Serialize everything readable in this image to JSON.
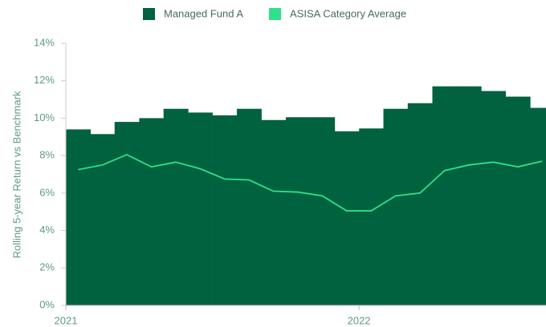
{
  "chart_data": {
    "type": "step-area-line",
    "y_label": "Rolling 5-year Return vs Benchmark",
    "x": [
      2021.042,
      2021.125,
      2021.208,
      2021.292,
      2021.375,
      2021.458,
      2021.542,
      2021.625,
      2021.708,
      2021.792,
      2021.875,
      2021.958,
      2022.042,
      2022.125,
      2022.208,
      2022.292,
      2022.375,
      2022.458,
      2022.542,
      2022.625
    ],
    "series": [
      {
        "name": "Managed Fund A",
        "color": "#00623f",
        "style": "step-area",
        "values": [
          9.4,
          9.15,
          9.8,
          10.0,
          10.5,
          10.3,
          10.15,
          10.5,
          9.9,
          10.05,
          10.05,
          9.3,
          9.45,
          10.5,
          10.8,
          11.7,
          11.7,
          11.45,
          11.15,
          10.55
        ]
      },
      {
        "name": "ASISA Category Average",
        "color": "#2fe08c",
        "style": "line",
        "values": [
          7.25,
          7.5,
          8.05,
          7.4,
          7.65,
          7.3,
          6.75,
          6.7,
          6.1,
          6.05,
          5.85,
          5.05,
          5.05,
          5.85,
          6.0,
          7.2,
          7.5,
          7.65,
          7.4,
          7.7
        ]
      }
    ],
    "xlim": [
      2021,
      2022.638
    ],
    "xticks": [
      2021,
      2022
    ],
    "ylim": [
      0,
      14
    ],
    "yticks": [
      {
        "value": 0,
        "label": "0%"
      },
      {
        "value": 2,
        "label": "2%"
      },
      {
        "value": 4,
        "label": "4%"
      },
      {
        "value": 6,
        "label": "6%"
      },
      {
        "value": 8,
        "label": "8%"
      },
      {
        "value": 10,
        "label": "10%"
      },
      {
        "value": 12,
        "label": "12%"
      },
      {
        "value": 14,
        "label": "14%"
      }
    ],
    "step_width": 0.0833,
    "legend": "top"
  }
}
